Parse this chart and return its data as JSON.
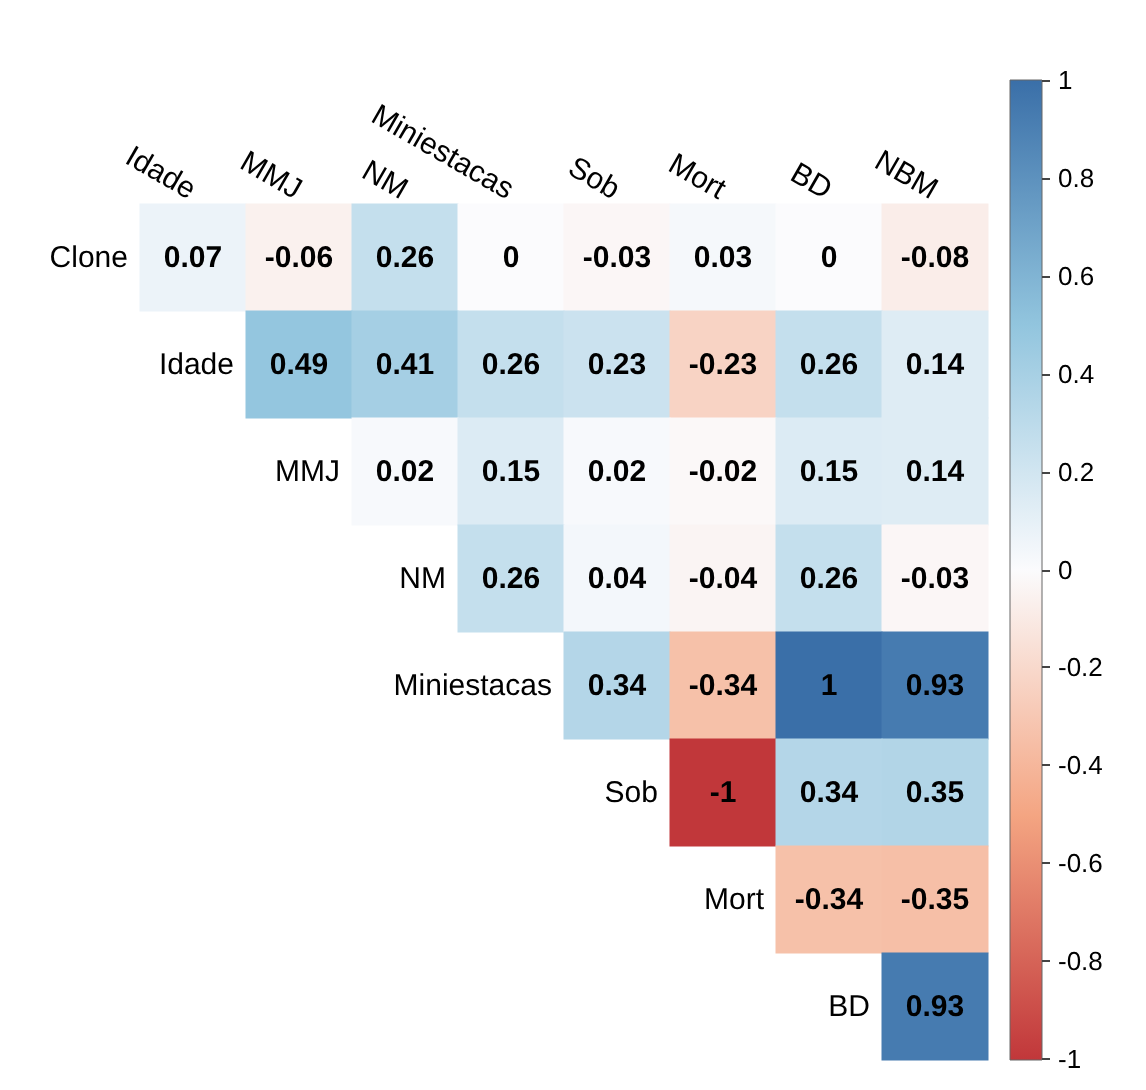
{
  "chart_data": {
    "type": "heatmap",
    "categories": [
      "Idade",
      "MMJ",
      "NM",
      "Miniestacas",
      "Sob",
      "Mort",
      "BD",
      "NBM"
    ],
    "y_categories": [
      "Clone",
      "Idade",
      "MMJ",
      "NM",
      "Miniestacas",
      "Sob",
      "Mort",
      "BD"
    ],
    "cells": [
      [
        0.07,
        -0.06,
        0.26,
        0,
        -0.03,
        0.03,
        0,
        -0.08
      ],
      [
        null,
        0.49,
        0.41,
        0.26,
        0.23,
        -0.23,
        0.26,
        0.14
      ],
      [
        null,
        null,
        0.02,
        0.15,
        0.02,
        -0.02,
        0.15,
        0.14
      ],
      [
        null,
        null,
        null,
        0.26,
        0.04,
        -0.04,
        0.26,
        -0.03
      ],
      [
        null,
        null,
        null,
        null,
        0.34,
        -0.34,
        1,
        0.93
      ],
      [
        null,
        null,
        null,
        null,
        null,
        -1,
        0.34,
        0.35
      ],
      [
        null,
        null,
        null,
        null,
        null,
        null,
        -0.34,
        -0.35
      ],
      [
        null,
        null,
        null,
        null,
        null,
        null,
        null,
        0.93
      ]
    ],
    "clim": [
      -1,
      1
    ],
    "cticks": [
      -1,
      -0.8,
      -0.6,
      -0.4,
      -0.2,
      0,
      0.2,
      0.4,
      0.6,
      0.8,
      1
    ],
    "data_labels": true
  }
}
